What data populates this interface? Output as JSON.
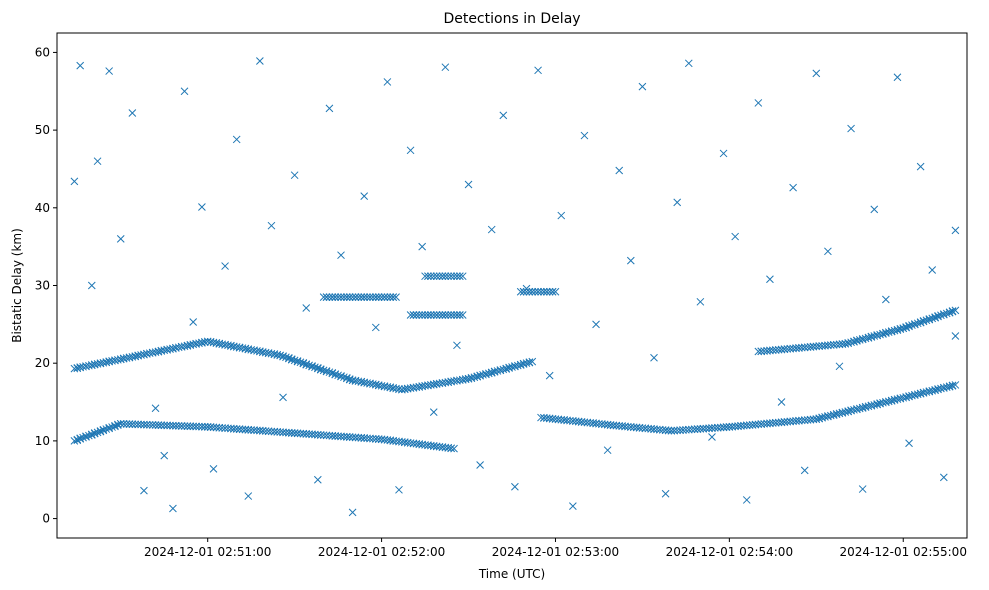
{
  "chart_data": {
    "type": "scatter",
    "title": "Detections in Delay",
    "xlabel": "Time (UTC)",
    "ylabel": "Bistatic Delay (km)",
    "marker": "x",
    "color": "#1f77b4",
    "grid": false,
    "xlim": [
      "2024-12-01 02:50:08",
      "2024-12-01 02:55:22"
    ],
    "ylim": [
      -2.5,
      62.5
    ],
    "xticks": [
      "2024-12-01 02:51:00",
      "2024-12-01 02:52:00",
      "2024-12-01 02:53:00",
      "2024-12-01 02:54:00",
      "2024-12-01 02:55:00"
    ],
    "yticks": [
      0,
      10,
      20,
      30,
      40,
      50,
      60
    ],
    "tracks": [
      {
        "t": [
          "2024-12-01 02:50:14",
          "2024-12-01 02:51:00",
          "2024-12-01 02:51:25",
          "2024-12-01 02:51:50",
          "2024-12-01 02:52:07",
          "2024-12-01 02:52:30",
          "2024-12-01 02:52:52"
        ],
        "y": [
          19.3,
          22.8,
          21.0,
          17.8,
          16.6,
          18.0,
          20.2
        ]
      },
      {
        "t": [
          "2024-12-01 02:50:14",
          "2024-12-01 02:50:30",
          "2024-12-01 02:51:00",
          "2024-12-01 02:51:30",
          "2024-12-01 02:52:00",
          "2024-12-01 02:52:25"
        ],
        "y": [
          10.0,
          12.2,
          11.8,
          11.0,
          10.2,
          9.0
        ]
      },
      {
        "t": [
          "2024-12-01 02:52:55",
          "2024-12-01 02:53:20",
          "2024-12-01 02:53:40",
          "2024-12-01 02:54:00",
          "2024-12-01 02:54:30",
          "2024-12-01 02:55:18"
        ],
        "y": [
          13.0,
          12.0,
          11.3,
          11.8,
          12.8,
          17.2
        ]
      },
      {
        "t": [
          "2024-12-01 02:54:10",
          "2024-12-01 02:54:40",
          "2024-12-01 02:55:00",
          "2024-12-01 02:55:18"
        ],
        "y": [
          21.5,
          22.5,
          24.5,
          26.8
        ]
      },
      {
        "t": [
          "2024-12-01 02:52:48",
          "2024-12-01 02:53:00"
        ],
        "y": [
          29.2,
          29.2
        ]
      },
      {
        "t": [
          "2024-12-01 02:51:40",
          "2024-12-01 02:52:05"
        ],
        "y": [
          28.5,
          28.5
        ]
      },
      {
        "t": [
          "2024-12-01 02:52:15",
          "2024-12-01 02:52:28"
        ],
        "y": [
          31.2,
          31.2
        ]
      },
      {
        "t": [
          "2024-12-01 02:52:10",
          "2024-12-01 02:52:28"
        ],
        "y": [
          26.2,
          26.2
        ]
      }
    ],
    "scatter_points": [
      [
        "2024-12-01 02:50:14",
        43.4
      ],
      [
        "2024-12-01 02:50:16",
        58.3
      ],
      [
        "2024-12-01 02:50:20",
        30.0
      ],
      [
        "2024-12-01 02:50:22",
        46.0
      ],
      [
        "2024-12-01 02:50:26",
        57.6
      ],
      [
        "2024-12-01 02:50:30",
        36.0
      ],
      [
        "2024-12-01 02:50:34",
        52.2
      ],
      [
        "2024-12-01 02:50:38",
        3.6
      ],
      [
        "2024-12-01 02:50:42",
        14.2
      ],
      [
        "2024-12-01 02:50:45",
        8.1
      ],
      [
        "2024-12-01 02:50:48",
        1.3
      ],
      [
        "2024-12-01 02:50:52",
        55.0
      ],
      [
        "2024-12-01 02:50:55",
        25.3
      ],
      [
        "2024-12-01 02:50:58",
        40.1
      ],
      [
        "2024-12-01 02:51:02",
        6.4
      ],
      [
        "2024-12-01 02:51:06",
        32.5
      ],
      [
        "2024-12-01 02:51:10",
        48.8
      ],
      [
        "2024-12-01 02:51:14",
        2.9
      ],
      [
        "2024-12-01 02:51:18",
        58.9
      ],
      [
        "2024-12-01 02:51:22",
        37.7
      ],
      [
        "2024-12-01 02:51:26",
        15.6
      ],
      [
        "2024-12-01 02:51:30",
        44.2
      ],
      [
        "2024-12-01 02:51:34",
        27.1
      ],
      [
        "2024-12-01 02:51:38",
        5.0
      ],
      [
        "2024-12-01 02:51:42",
        52.8
      ],
      [
        "2024-12-01 02:51:46",
        33.9
      ],
      [
        "2024-12-01 02:51:50",
        0.8
      ],
      [
        "2024-12-01 02:51:54",
        41.5
      ],
      [
        "2024-12-01 02:51:58",
        24.6
      ],
      [
        "2024-12-01 02:52:02",
        56.2
      ],
      [
        "2024-12-01 02:52:06",
        3.7
      ],
      [
        "2024-12-01 02:52:10",
        47.4
      ],
      [
        "2024-12-01 02:52:14",
        35.0
      ],
      [
        "2024-12-01 02:52:18",
        13.7
      ],
      [
        "2024-12-01 02:52:22",
        58.1
      ],
      [
        "2024-12-01 02:52:26",
        22.3
      ],
      [
        "2024-12-01 02:52:30",
        43.0
      ],
      [
        "2024-12-01 02:52:34",
        6.9
      ],
      [
        "2024-12-01 02:52:38",
        37.2
      ],
      [
        "2024-12-01 02:52:42",
        51.9
      ],
      [
        "2024-12-01 02:52:46",
        4.1
      ],
      [
        "2024-12-01 02:52:50",
        29.6
      ],
      [
        "2024-12-01 02:52:54",
        57.7
      ],
      [
        "2024-12-01 02:52:58",
        18.4
      ],
      [
        "2024-12-01 02:53:02",
        39.0
      ],
      [
        "2024-12-01 02:53:06",
        1.6
      ],
      [
        "2024-12-01 02:53:10",
        49.3
      ],
      [
        "2024-12-01 02:53:14",
        25.0
      ],
      [
        "2024-12-01 02:53:18",
        8.8
      ],
      [
        "2024-12-01 02:53:22",
        44.8
      ],
      [
        "2024-12-01 02:53:26",
        33.2
      ],
      [
        "2024-12-01 02:53:30",
        55.6
      ],
      [
        "2024-12-01 02:53:34",
        20.7
      ],
      [
        "2024-12-01 02:53:38",
        3.2
      ],
      [
        "2024-12-01 02:53:42",
        40.7
      ],
      [
        "2024-12-01 02:53:46",
        58.6
      ],
      [
        "2024-12-01 02:53:50",
        27.9
      ],
      [
        "2024-12-01 02:53:54",
        10.5
      ],
      [
        "2024-12-01 02:53:58",
        47.0
      ],
      [
        "2024-12-01 02:54:02",
        36.3
      ],
      [
        "2024-12-01 02:54:06",
        2.4
      ],
      [
        "2024-12-01 02:54:10",
        53.5
      ],
      [
        "2024-12-01 02:54:14",
        30.8
      ],
      [
        "2024-12-01 02:54:18",
        15.0
      ],
      [
        "2024-12-01 02:54:22",
        42.6
      ],
      [
        "2024-12-01 02:54:26",
        6.2
      ],
      [
        "2024-12-01 02:54:30",
        57.3
      ],
      [
        "2024-12-01 02:54:34",
        34.4
      ],
      [
        "2024-12-01 02:54:38",
        19.6
      ],
      [
        "2024-12-01 02:54:42",
        50.2
      ],
      [
        "2024-12-01 02:54:46",
        3.8
      ],
      [
        "2024-12-01 02:54:50",
        39.8
      ],
      [
        "2024-12-01 02:54:54",
        28.2
      ],
      [
        "2024-12-01 02:54:58",
        56.8
      ],
      [
        "2024-12-01 02:55:02",
        9.7
      ],
      [
        "2024-12-01 02:55:06",
        45.3
      ],
      [
        "2024-12-01 02:55:10",
        32.0
      ],
      [
        "2024-12-01 02:55:14",
        5.3
      ],
      [
        "2024-12-01 02:55:18",
        37.1
      ],
      [
        "2024-12-01 02:55:18",
        23.5
      ]
    ]
  }
}
